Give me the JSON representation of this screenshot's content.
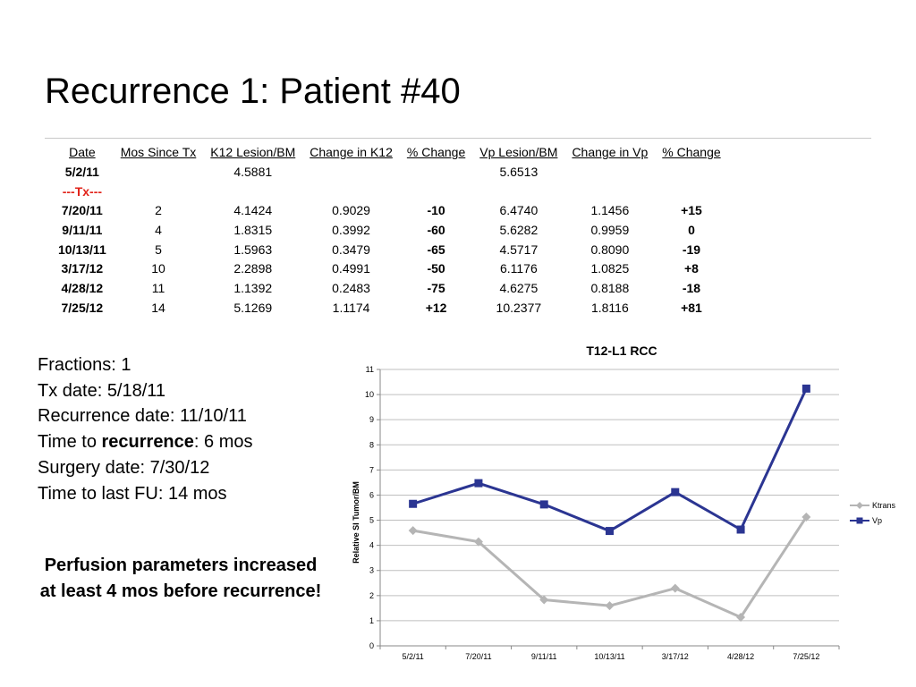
{
  "slide": {
    "title": "Recurrence 1: Patient #40"
  },
  "table": {
    "headers": [
      "Date",
      "Mos Since Tx",
      "K12 Lesion/BM",
      "Change in K12",
      "% Change",
      "Vp Lesion/BM",
      "Change in Vp",
      "% Change"
    ],
    "tx_marker": "---Tx---",
    "rows": [
      {
        "date": "5/2/11",
        "mos": "",
        "k12": "4.5881",
        "chg_k12": "",
        "pct_k12": "",
        "vp": "5.6513",
        "chg_vp": "",
        "pct_vp": ""
      },
      {
        "date": "7/20/11",
        "mos": "2",
        "k12": "4.1424",
        "chg_k12": "0.9029",
        "pct_k12": "-10",
        "vp": "6.4740",
        "chg_vp": "1.1456",
        "pct_vp": "+15"
      },
      {
        "date": "9/11/11",
        "mos": "4",
        "k12": "1.8315",
        "chg_k12": "0.3992",
        "pct_k12": "-60",
        "vp": "5.6282",
        "chg_vp": "0.9959",
        "pct_vp": "0"
      },
      {
        "date": "10/13/11",
        "mos": "5",
        "k12": "1.5963",
        "chg_k12": "0.3479",
        "pct_k12": "-65",
        "vp": "4.5717",
        "chg_vp": "0.8090",
        "pct_vp": "-19"
      },
      {
        "date": "3/17/12",
        "mos": "10",
        "k12": "2.2898",
        "chg_k12": "0.4991",
        "pct_k12": "-50",
        "vp": "6.1176",
        "chg_vp": "1.0825",
        "pct_vp": "+8"
      },
      {
        "date": "4/28/12",
        "mos": "11",
        "k12": "1.1392",
        "chg_k12": "0.2483",
        "pct_k12": "-75",
        "vp": "4.6275",
        "chg_vp": "0.8188",
        "pct_vp": "-18"
      },
      {
        "date": "7/25/12",
        "mos": "14",
        "k12": "5.1269",
        "chg_k12": "1.1174",
        "pct_k12": "+12",
        "vp": "10.2377",
        "chg_vp": "1.8116",
        "pct_vp": "+81"
      }
    ]
  },
  "info": {
    "fractions": "Fractions: 1",
    "tx_date": "Tx date: 5/18/11",
    "recurrence_date": "Recurrence date: 11/10/11",
    "time_to_prefix": "Time to ",
    "time_to_bold": "recurrence",
    "time_to_suffix": ": 6 mos",
    "surgery_date": "Surgery date: 7/30/12",
    "time_to_fu": "Time to last FU: 14 mos"
  },
  "conclusion": "Perfusion parameters increased at least 4 mos before recurrence!",
  "chart_data": {
    "type": "line",
    "title": "T12-L1 RCC",
    "xlabel": "",
    "ylabel": "Relative SI Tumor/BM",
    "categories": [
      "5/2/11",
      "7/20/11",
      "9/11/11",
      "10/13/11",
      "3/17/12",
      "4/28/12",
      "7/25/12"
    ],
    "ylim": [
      0,
      11
    ],
    "yticks": [
      0,
      1,
      2,
      3,
      4,
      5,
      6,
      7,
      8,
      9,
      10,
      11
    ],
    "grid": true,
    "legend": "right",
    "series": [
      {
        "name": "Ktrans",
        "values": [
          4.5881,
          4.1424,
          1.8315,
          1.5963,
          2.2898,
          1.1392,
          5.1269
        ],
        "color": "#b5b5b5",
        "marker": "diamond"
      },
      {
        "name": "Vp",
        "values": [
          5.6513,
          6.474,
          5.6282,
          4.5717,
          6.1176,
          4.6275,
          10.2377
        ],
        "color": "#2b3592",
        "marker": "square"
      }
    ]
  }
}
